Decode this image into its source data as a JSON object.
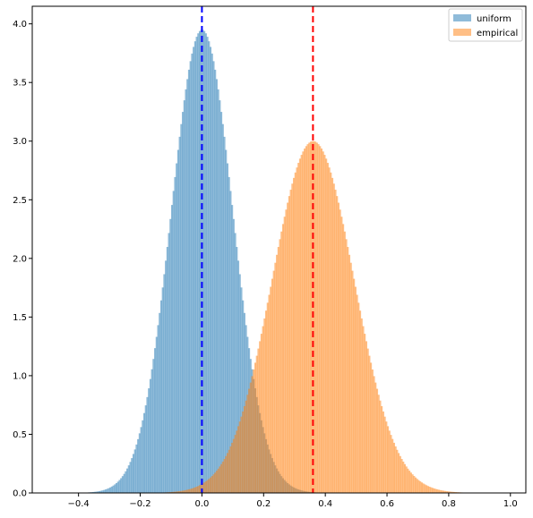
{
  "chart_data": {
    "type": "histogram",
    "title": "",
    "xlabel": "",
    "ylabel": "",
    "xlim": [
      -0.55,
      1.05
    ],
    "ylim": [
      0,
      4.15
    ],
    "xticks": [
      -0.4,
      -0.2,
      0.0,
      0.2,
      0.4,
      0.6,
      0.8,
      1.0
    ],
    "xtick_labels": [
      "−0.4",
      "−0.2",
      "0.0",
      "0.2",
      "0.4",
      "0.6",
      "0.8",
      "1.0"
    ],
    "yticks": [
      0.0,
      0.5,
      1.0,
      1.5,
      2.0,
      2.5,
      3.0,
      3.5,
      4.0
    ],
    "ytick_labels": [
      "0.0",
      "0.5",
      "1.0",
      "1.5",
      "2.0",
      "2.5",
      "3.0",
      "3.5",
      "4.0"
    ],
    "grid": false,
    "legend_position": "top-right",
    "series": [
      {
        "name": "uniform",
        "color": "#1f77b4",
        "alpha": 0.5,
        "distribution": "normal",
        "peak_x": 0.0,
        "peak_density": 3.95,
        "std": 0.1,
        "range": [
          -0.45,
          0.45
        ]
      },
      {
        "name": "empirical",
        "color": "#ff7f0e",
        "alpha": 0.5,
        "distribution": "normal",
        "peak_x": 0.36,
        "peak_density": 3.0,
        "std": 0.133,
        "range": [
          -0.2,
          0.92
        ]
      }
    ],
    "reference_lines": [
      {
        "series": "uniform",
        "x": 0.0,
        "color": "#0000ff",
        "style": "dashed"
      },
      {
        "series": "empirical",
        "x": 0.36,
        "color": "#ff0000",
        "style": "dashed"
      }
    ]
  }
}
